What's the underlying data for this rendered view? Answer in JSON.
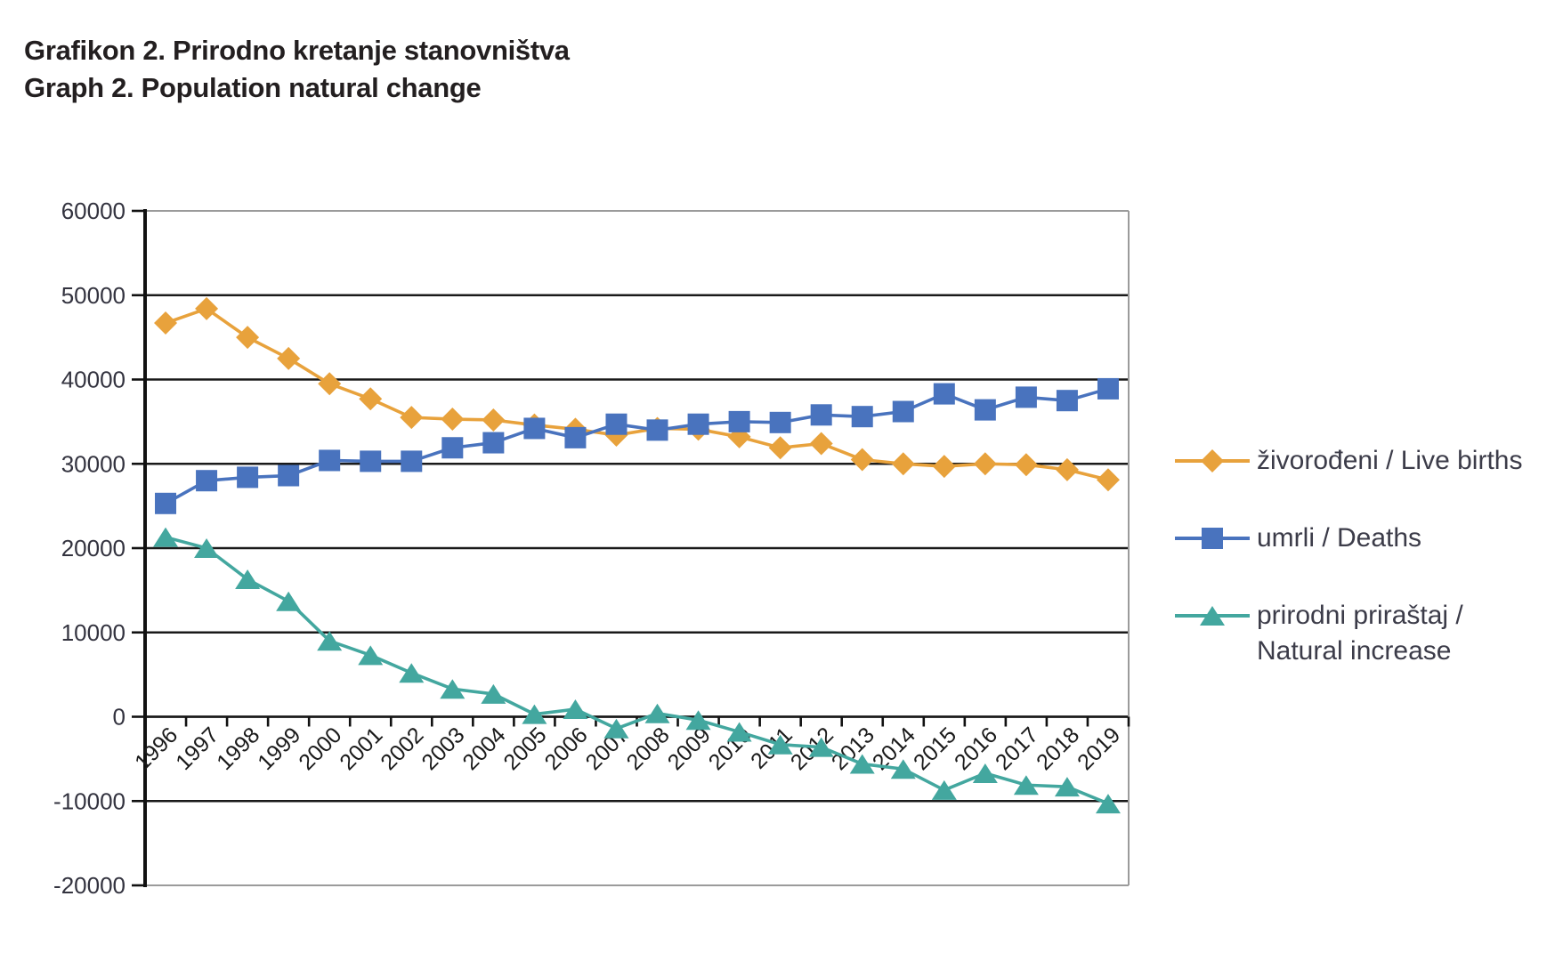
{
  "title": {
    "line1": "Grafikon 2. Prirodno kretanje stanovništva",
    "line2": "Graph 2. Population natural change"
  },
  "legend": {
    "items": [
      {
        "id": "live-births",
        "lines": [
          "živorođeni / Live births",
          ""
        ]
      },
      {
        "id": "deaths",
        "lines": [
          "umrli / Deaths",
          ""
        ]
      },
      {
        "id": "natural-increase",
        "lines": [
          "prirodni priraštaj /",
          "Natural increase"
        ]
      }
    ]
  },
  "chart_data": {
    "type": "line",
    "title": "Grafikon 2. Prirodno kretanje stanovništva / Graph 2. Population natural change",
    "x": [
      1996,
      1997,
      1998,
      1999,
      2000,
      2001,
      2002,
      2003,
      2004,
      2005,
      2006,
      2007,
      2008,
      2009,
      2010,
      2011,
      2012,
      2013,
      2014,
      2015,
      2016,
      2017,
      2018,
      2019
    ],
    "series": [
      {
        "name": "živorođeni / Live births",
        "marker": "diamond",
        "color": "#E8A23C",
        "values": [
          46700,
          48400,
          45000,
          42500,
          39500,
          37700,
          35500,
          35300,
          35200,
          34600,
          34100,
          33400,
          34200,
          34100,
          33200,
          31900,
          32400,
          30500,
          30000,
          29700,
          30000,
          29900,
          29300,
          28100
        ]
      },
      {
        "name": "umrli / Deaths",
        "marker": "square",
        "color": "#4973BE",
        "values": [
          25300,
          28000,
          28400,
          28600,
          30400,
          30300,
          30300,
          31900,
          32500,
          34200,
          33100,
          34700,
          34000,
          34700,
          35000,
          34900,
          35800,
          35600,
          36200,
          38300,
          36400,
          37900,
          37500,
          38900
        ]
      },
      {
        "name": "prirodni priraštaj / Natural increase",
        "marker": "triangle",
        "color": "#43A79F",
        "values": [
          21300,
          20000,
          16300,
          13700,
          9000,
          7300,
          5200,
          3300,
          2700,
          300,
          900,
          -1400,
          400,
          -400,
          -1800,
          -3300,
          -3600,
          -5600,
          -6200,
          -8700,
          -6700,
          -8100,
          -8300,
          -10300
        ]
      }
    ],
    "ylim": [
      -20000,
      60000
    ],
    "ytick_step": 10000,
    "ytick_labels": [
      "60000",
      "50000",
      "40000",
      "30000",
      "20000",
      "10000",
      "0",
      "-10000",
      "-20000"
    ],
    "grid": "horizontal",
    "legend_position": "right"
  },
  "colors": {
    "grid": "#1a1a1a",
    "frame": "#9b9b9b",
    "axis": "#111111",
    "tick_label": "#33333f",
    "legend_text": "#3c3c49",
    "title_text": "#231f20",
    "background": "#ffffff"
  }
}
